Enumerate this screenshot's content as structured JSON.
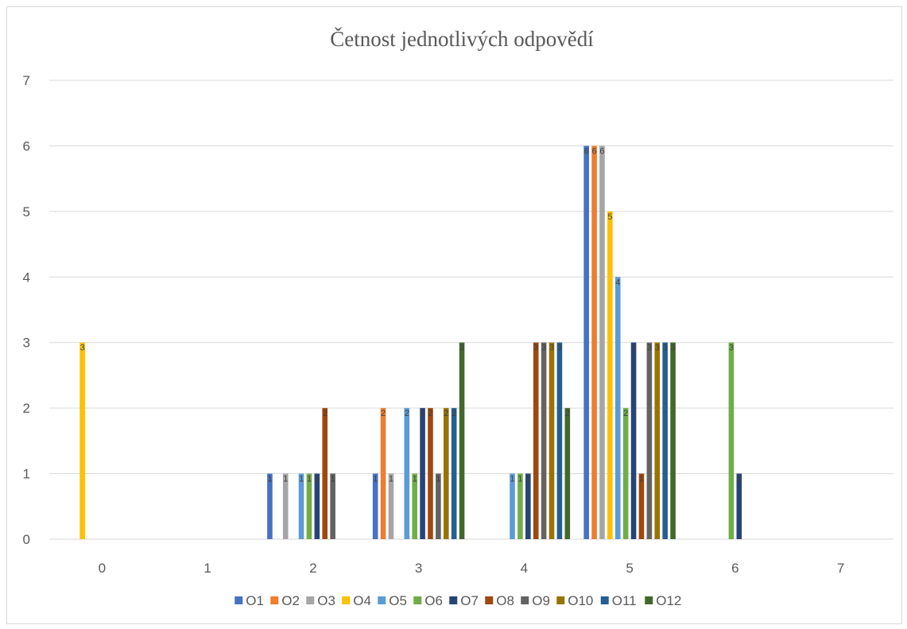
{
  "chart_data": {
    "type": "bar",
    "title": "Četnost jednotlivých odpovědí",
    "xlabel": "",
    "ylabel": "",
    "categories": [
      "0",
      "1",
      "2",
      "3",
      "4",
      "5",
      "6",
      "7"
    ],
    "ylim": [
      0,
      7
    ],
    "yticks": [
      "0",
      "1",
      "2",
      "3",
      "4",
      "5",
      "6",
      "7"
    ],
    "grid": true,
    "legend_position": "bottom",
    "data_labels": true,
    "series": [
      {
        "name": "O1",
        "color": "#4472C4",
        "values": [
          0,
          0,
          1,
          1,
          0,
          6,
          0,
          0
        ]
      },
      {
        "name": "O2",
        "color": "#ED7D31",
        "values": [
          0,
          0,
          0,
          2,
          0,
          6,
          0,
          0
        ]
      },
      {
        "name": "O3",
        "color": "#A5A5A5",
        "values": [
          0,
          0,
          1,
          1,
          0,
          6,
          0,
          0
        ]
      },
      {
        "name": "O4",
        "color": "#FFC000",
        "values": [
          3,
          0,
          0,
          0,
          0,
          5,
          0,
          0
        ]
      },
      {
        "name": "O5",
        "color": "#5B9BD5",
        "values": [
          0,
          0,
          1,
          2,
          1,
          4,
          0,
          0
        ]
      },
      {
        "name": "O6",
        "color": "#70AD47",
        "values": [
          0,
          0,
          1,
          1,
          1,
          2,
          3,
          0
        ]
      },
      {
        "name": "O7",
        "color": "#264478",
        "values": [
          0,
          0,
          1,
          2,
          1,
          3,
          1,
          0
        ]
      },
      {
        "name": "O8",
        "color": "#9E480E",
        "values": [
          0,
          0,
          2,
          2,
          3,
          1,
          0,
          0
        ]
      },
      {
        "name": "O9",
        "color": "#636363",
        "values": [
          0,
          0,
          1,
          1,
          3,
          3,
          0,
          0
        ]
      },
      {
        "name": "O10",
        "color": "#997300",
        "values": [
          0,
          0,
          0,
          2,
          3,
          3,
          0,
          0
        ]
      },
      {
        "name": "O11",
        "color": "#255E91",
        "values": [
          0,
          0,
          0,
          2,
          3,
          3,
          0,
          0
        ]
      },
      {
        "name": "O12",
        "color": "#43682B",
        "values": [
          0,
          0,
          0,
          3,
          2,
          3,
          0,
          0
        ]
      }
    ]
  }
}
